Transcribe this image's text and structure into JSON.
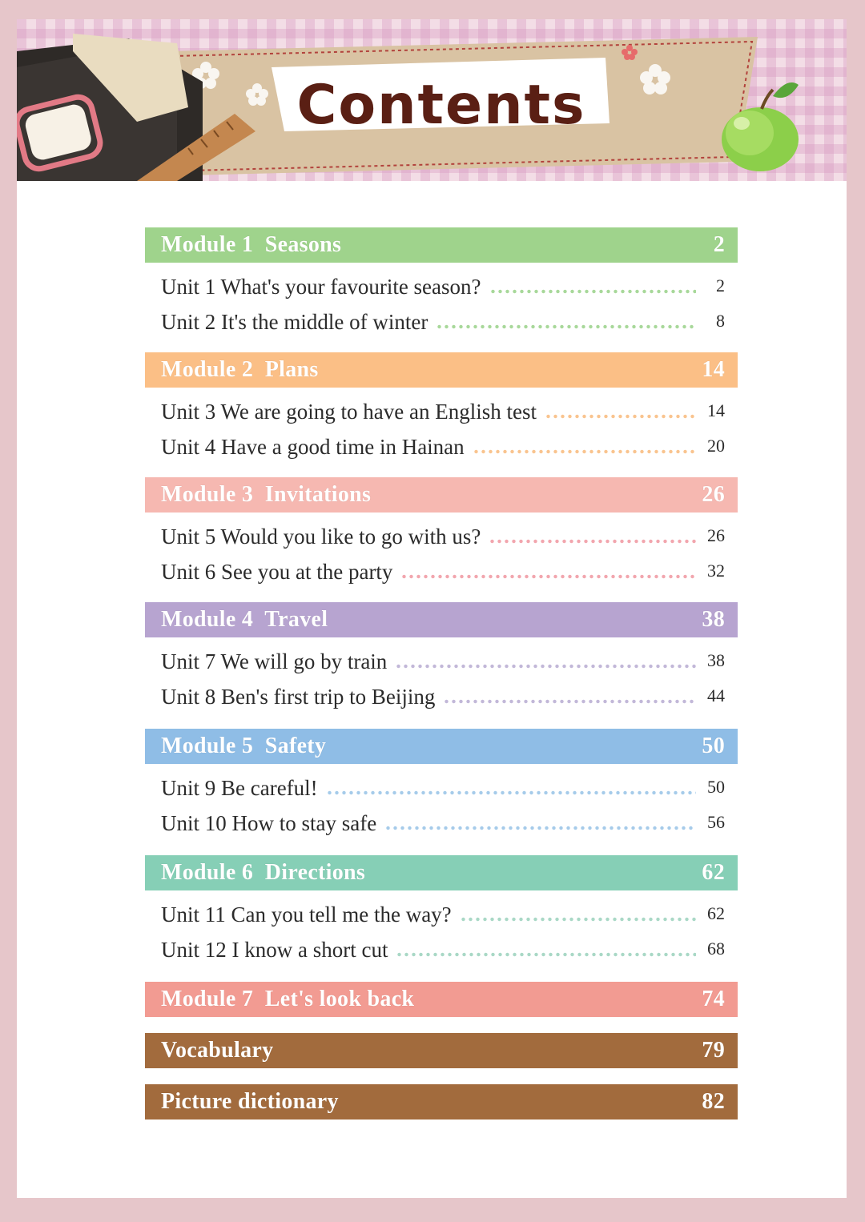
{
  "header": {
    "title": "Contents"
  },
  "colors": {
    "module1": "#9fd38c",
    "module2": "#fbbf86",
    "module3": "#f6b8b1",
    "module4": "#b7a4d0",
    "module5": "#8fbde6",
    "module6": "#86cfb6",
    "module7": "#f29b92",
    "brown": "#a26b3d"
  },
  "modules": [
    {
      "title": "Module 1  Seasons",
      "page": "2",
      "units": [
        {
          "title": "Unit 1 What's your favourite season?",
          "page": "2"
        },
        {
          "title": "Unit 2 It's the middle of winter",
          "page": "8"
        }
      ]
    },
    {
      "title": "Module 2  Plans",
      "page": "14",
      "units": [
        {
          "title": "Unit 3 We are going to have an English test",
          "page": "14"
        },
        {
          "title": "Unit 4 Have a good time in Hainan",
          "page": "20"
        }
      ]
    },
    {
      "title": "Module 3  Invitations",
      "page": "26",
      "units": [
        {
          "title": "Unit 5 Would you like to go with us?",
          "page": "26"
        },
        {
          "title": "Unit 6 See you at the party",
          "page": "32"
        }
      ]
    },
    {
      "title": "Module 4  Travel",
      "page": "38",
      "units": [
        {
          "title": "Unit 7 We will go by train",
          "page": "38"
        },
        {
          "title": "Unit 8 Ben's first trip to Beijing",
          "page": "44"
        }
      ]
    },
    {
      "title": "Module 5  Safety",
      "page": "50",
      "units": [
        {
          "title": "Unit 9 Be careful!",
          "page": "50"
        },
        {
          "title": "Unit 10 How to stay safe",
          "page": "56"
        }
      ]
    },
    {
      "title": "Module 6  Directions",
      "page": "62",
      "units": [
        {
          "title": "Unit 11 Can you tell me the way?",
          "page": "62"
        },
        {
          "title": "Unit 12 I know a short cut",
          "page": "68"
        }
      ]
    },
    {
      "title": "Module 7  Let's look back",
      "page": "74",
      "units": []
    }
  ],
  "extras": [
    {
      "title": "Vocabulary",
      "page": "79"
    },
    {
      "title": "Picture dictionary",
      "page": "82"
    }
  ]
}
